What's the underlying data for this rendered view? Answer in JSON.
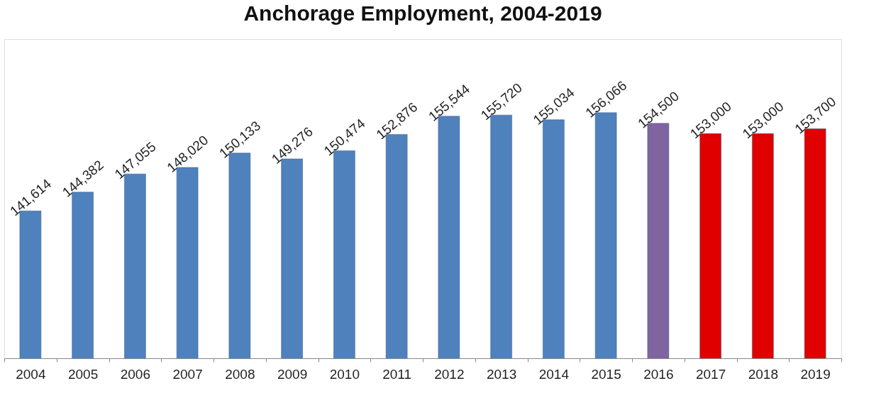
{
  "chart_data": {
    "type": "bar",
    "title": "Anchorage Employment, 2004-2019",
    "categories": [
      "2004",
      "2005",
      "2006",
      "2007",
      "2008",
      "2009",
      "2010",
      "2011",
      "2012",
      "2013",
      "2014",
      "2015",
      "2016",
      "2017",
      "2018",
      "2019"
    ],
    "values": [
      141614,
      144382,
      147055,
      148020,
      150133,
      149276,
      150474,
      152876,
      155544,
      155720,
      155034,
      156066,
      154500,
      153000,
      153000,
      153700
    ],
    "colors": [
      "#4f81bd",
      "#4f81bd",
      "#4f81bd",
      "#4f81bd",
      "#4f81bd",
      "#4f81bd",
      "#4f81bd",
      "#4f81bd",
      "#4f81bd",
      "#4f81bd",
      "#4f81bd",
      "#4f81bd",
      "#8064a2",
      "#e00000",
      "#e00000",
      "#e00000"
    ],
    "value_labels": [
      "141,614",
      "144,382",
      "147,055",
      "148,020",
      "150,133",
      "149,276",
      "150,474",
      "152,876",
      "155,544",
      "155,720",
      "155,034",
      "156,066",
      "154,500",
      "153,000",
      "153,000",
      "153,700"
    ],
    "tick_labels": "x",
    "grid": false
  }
}
